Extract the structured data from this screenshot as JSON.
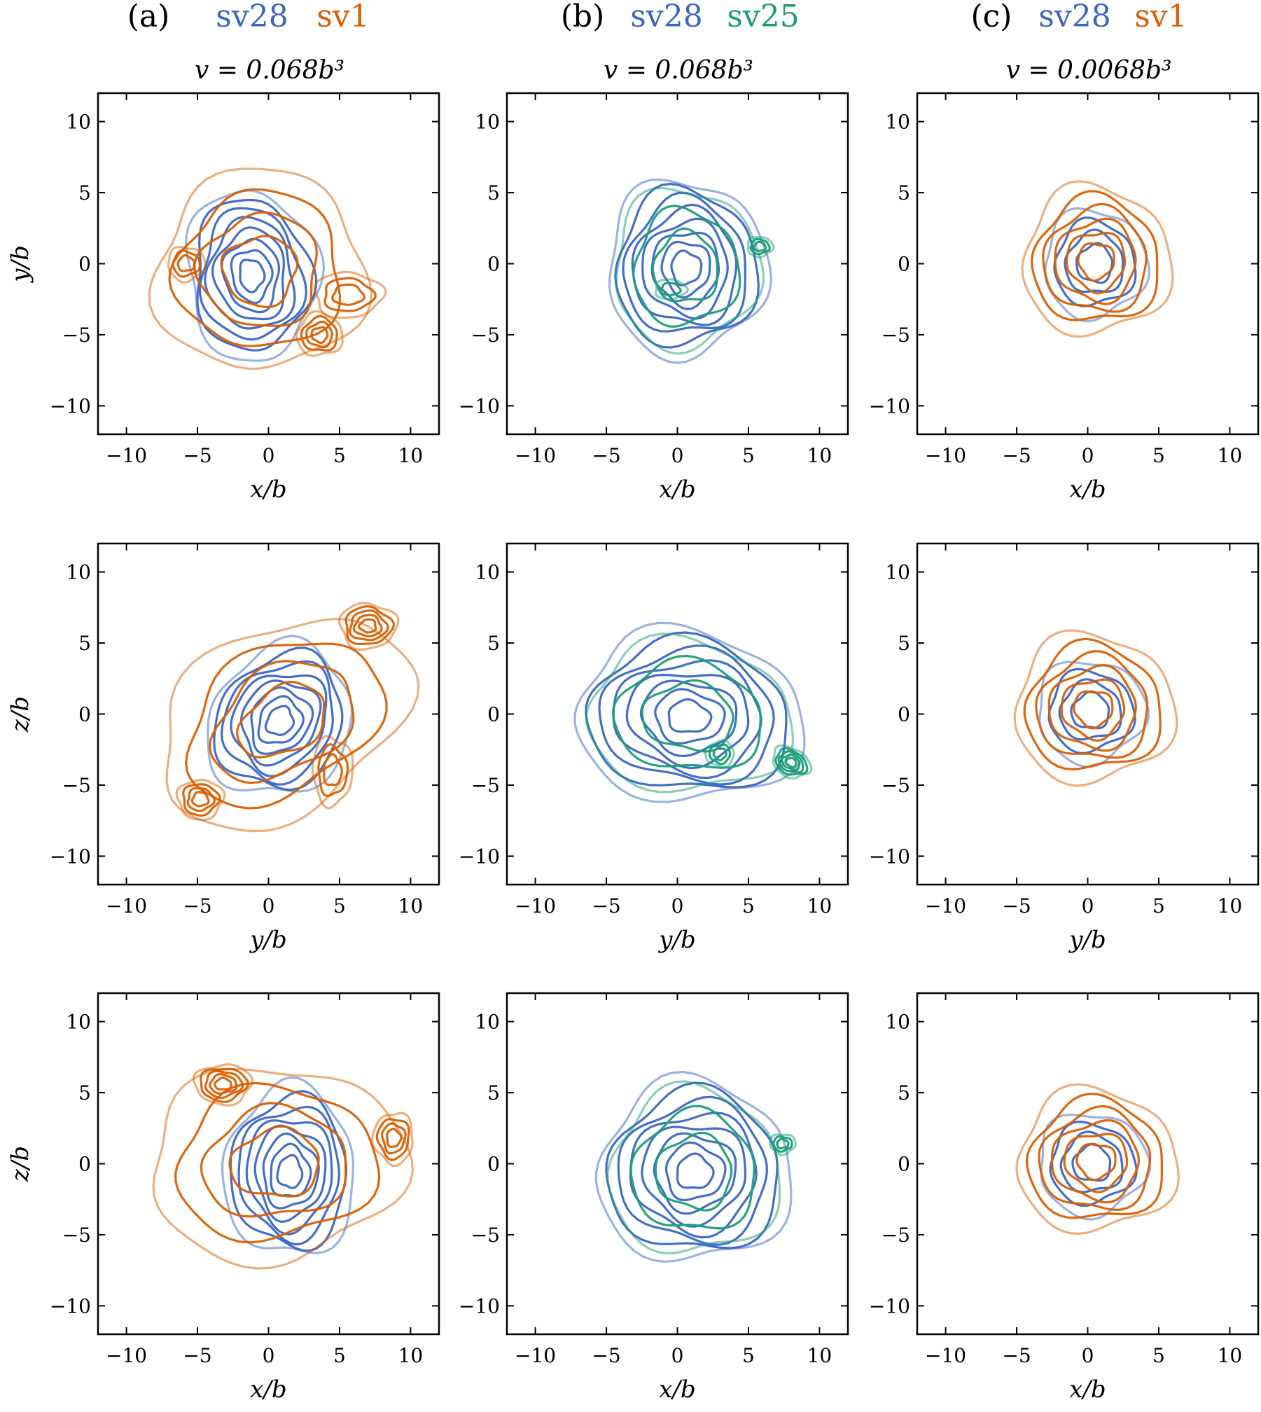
{
  "figure": {
    "columns": [
      {
        "panel_label": "(a)",
        "first": "sv28",
        "second": "sv1",
        "second_color": "#d95f02",
        "volume": "v = 0.068b³"
      },
      {
        "panel_label": "(b)",
        "first": "sv28",
        "second": "sv25",
        "second_color": "#1b9e77",
        "volume": "v = 0.068b³"
      },
      {
        "panel_label": "(c)",
        "first": "sv28",
        "second": "sv1",
        "second_color": "#d95f02",
        "volume": "v = 0.0068b³"
      }
    ],
    "colors": {
      "sv28": "#3a66c4",
      "sv1": "#d95f02",
      "sv25": "#1b9e77",
      "axes": "#000000"
    }
  },
  "chart_data": [
    {
      "type": "contour",
      "row": 0,
      "col": 0,
      "xlabel": "x/b",
      "ylabel": "y/b",
      "xlim": [
        -12,
        12
      ],
      "ylim": [
        -12,
        12
      ],
      "xticks": [
        -10,
        -5,
        0,
        5,
        10
      ],
      "yticks": [
        -10,
        -5,
        0,
        5,
        10
      ],
      "series": [
        {
          "name": "sv28",
          "color": "#3a66c4",
          "blobs": [
            {
              "c": [
                -1.2,
                -0.8
              ],
              "r": [
                4.6,
                6.0
              ],
              "rot": 0.1,
              "levels": 8
            }
          ]
        },
        {
          "name": "sv1",
          "color": "#d95f02",
          "blobs": [
            {
              "c": [
                -0.6,
                -0.5
              ],
              "r": [
                7.4,
                7.0
              ],
              "rot": 0.2,
              "levels": 4
            },
            {
              "c": [
                3.6,
                -5.0
              ],
              "r": [
                1.6,
                1.5
              ],
              "rot": 0,
              "levels": 4
            },
            {
              "c": [
                -5.8,
                0.0
              ],
              "r": [
                1.3,
                1.2
              ],
              "rot": 0,
              "levels": 3
            },
            {
              "c": [
                5.6,
                -2.2
              ],
              "r": [
                2.4,
                1.6
              ],
              "rot": 0,
              "levels": 3
            }
          ]
        }
      ]
    },
    {
      "type": "contour",
      "row": 0,
      "col": 1,
      "xlabel": "x/b",
      "ylabel": "",
      "xlim": [
        -12,
        12
      ],
      "ylim": [
        -12,
        12
      ],
      "xticks": [
        -10,
        -5,
        0,
        5,
        10
      ],
      "yticks": [
        -10,
        -5,
        0,
        5,
        10
      ],
      "series": [
        {
          "name": "sv28",
          "color": "#3a66c4",
          "blobs": [
            {
              "c": [
                0.6,
                -0.3
              ],
              "r": [
                5.6,
                6.2
              ],
              "rot": 0,
              "levels": 8
            }
          ]
        },
        {
          "name": "sv25",
          "color": "#1b9e77",
          "blobs": [
            {
              "c": [
                0.6,
                -0.3
              ],
              "r": [
                5.1,
                5.6
              ],
              "rot": 0,
              "levels": 3
            },
            {
              "c": [
                5.8,
                1.2
              ],
              "r": [
                0.9,
                0.7
              ],
              "rot": 0,
              "levels": 3
            },
            {
              "c": [
                -0.5,
                -1.8
              ],
              "r": [
                1.1,
                0.7
              ],
              "rot": 0,
              "levels": 2
            }
          ]
        }
      ]
    },
    {
      "type": "contour",
      "row": 0,
      "col": 2,
      "xlabel": "x/b",
      "ylabel": "",
      "xlim": [
        -12,
        12
      ],
      "ylim": [
        -12,
        12
      ],
      "xticks": [
        -10,
        -5,
        0,
        5,
        10
      ],
      "yticks": [
        -10,
        -5,
        0,
        5,
        10
      ],
      "series": [
        {
          "name": "sv28",
          "color": "#3a66c4",
          "blobs": [
            {
              "c": [
                0.5,
                0.0
              ],
              "r": [
                3.6,
                3.8
              ],
              "rot": 0,
              "levels": 4
            }
          ]
        },
        {
          "name": "sv1",
          "color": "#d95f02",
          "blobs": [
            {
              "c": [
                0.6,
                0.2
              ],
              "r": [
                5.2,
                5.2
              ],
              "rot": 0,
              "levels": 6
            }
          ]
        }
      ]
    },
    {
      "type": "contour",
      "row": 1,
      "col": 0,
      "xlabel": "y/b",
      "ylabel": "z/b",
      "xlim": [
        -12,
        12
      ],
      "ylim": [
        -12,
        12
      ],
      "xticks": [
        -10,
        -5,
        0,
        5,
        10
      ],
      "yticks": [
        -10,
        -5,
        0,
        5,
        10
      ],
      "series": [
        {
          "name": "sv28",
          "color": "#3a66c4",
          "blobs": [
            {
              "c": [
                0.8,
                -0.5
              ],
              "r": [
                4.8,
                5.6
              ],
              "rot": -0.6,
              "levels": 8
            }
          ]
        },
        {
          "name": "sv1",
          "color": "#d95f02",
          "blobs": [
            {
              "c": [
                1.0,
                -0.5
              ],
              "r": [
                9.5,
                6.4
              ],
              "rot": 0.55,
              "levels": 4
            },
            {
              "c": [
                7.0,
                6.2
              ],
              "r": [
                2.0,
                1.6
              ],
              "rot": 0,
              "levels": 5
            },
            {
              "c": [
                -4.8,
                -6.0
              ],
              "r": [
                1.6,
                1.4
              ],
              "rot": 0,
              "levels": 4
            },
            {
              "c": [
                4.5,
                -4.0
              ],
              "r": [
                1.4,
                2.4
              ],
              "rot": 0,
              "levels": 3
            }
          ]
        }
      ]
    },
    {
      "type": "contour",
      "row": 1,
      "col": 1,
      "xlabel": "y/b",
      "ylabel": "",
      "xlim": [
        -12,
        12
      ],
      "ylim": [
        -12,
        12
      ],
      "xticks": [
        -10,
        -5,
        0,
        5,
        10
      ],
      "yticks": [
        -10,
        -5,
        0,
        5,
        10
      ],
      "series": [
        {
          "name": "sv28",
          "color": "#3a66c4",
          "blobs": [
            {
              "c": [
                0.8,
                -0.2
              ],
              "r": [
                8.0,
                6.0
              ],
              "rot": -0.1,
              "levels": 8
            }
          ]
        },
        {
          "name": "sv25",
          "color": "#1b9e77",
          "blobs": [
            {
              "c": [
                0.8,
                -0.2
              ],
              "r": [
                7.2,
                5.3
              ],
              "rot": -0.1,
              "levels": 3
            },
            {
              "c": [
                8.0,
                -3.4
              ],
              "r": [
                1.4,
                1.0
              ],
              "rot": -0.5,
              "levels": 5
            },
            {
              "c": [
                3.0,
                -2.8
              ],
              "r": [
                1.0,
                0.9
              ],
              "rot": 0,
              "levels": 3
            }
          ]
        }
      ]
    },
    {
      "type": "contour",
      "row": 1,
      "col": 2,
      "xlabel": "y/b",
      "ylabel": "",
      "xlim": [
        -12,
        12
      ],
      "ylim": [
        -12,
        12
      ],
      "xticks": [
        -10,
        -5,
        0,
        5,
        10
      ],
      "yticks": [
        -10,
        -5,
        0,
        5,
        10
      ],
      "series": [
        {
          "name": "sv28",
          "color": "#3a66c4",
          "blobs": [
            {
              "c": [
                0.2,
                0.2
              ],
              "r": [
                3.8,
                3.6
              ],
              "rot": 0,
              "levels": 4
            }
          ]
        },
        {
          "name": "sv1",
          "color": "#d95f02",
          "blobs": [
            {
              "c": [
                0.4,
                0.4
              ],
              "r": [
                5.6,
                5.2
              ],
              "rot": 0,
              "levels": 6
            }
          ]
        }
      ]
    },
    {
      "type": "contour",
      "row": 2,
      "col": 0,
      "xlabel": "x/b",
      "ylabel": "z/b",
      "xlim": [
        -12,
        12
      ],
      "ylim": [
        -12,
        12
      ],
      "xticks": [
        -10,
        -5,
        0,
        5,
        10
      ],
      "yticks": [
        -10,
        -5,
        0,
        5,
        10
      ],
      "series": [
        {
          "name": "sv28",
          "color": "#3a66c4",
          "blobs": [
            {
              "c": [
                1.5,
                -0.6
              ],
              "r": [
                4.6,
                6.0
              ],
              "rot": 0,
              "levels": 8
            }
          ]
        },
        {
          "name": "sv1",
          "color": "#d95f02",
          "blobs": [
            {
              "c": [
                0.5,
                0.0
              ],
              "r": [
                9.0,
                6.8
              ],
              "rot": 0.1,
              "levels": 4
            },
            {
              "c": [
                -3.2,
                5.6
              ],
              "r": [
                2.0,
                1.4
              ],
              "rot": 0,
              "levels": 5
            },
            {
              "c": [
                8.8,
                1.8
              ],
              "r": [
                1.4,
                1.8
              ],
              "rot": 0,
              "levels": 4
            }
          ]
        }
      ]
    },
    {
      "type": "contour",
      "row": 2,
      "col": 1,
      "xlabel": "x/b",
      "ylabel": "",
      "xlim": [
        -12,
        12
      ],
      "ylim": [
        -12,
        12
      ],
      "xticks": [
        -10,
        -5,
        0,
        5,
        10
      ],
      "yticks": [
        -10,
        -5,
        0,
        5,
        10
      ],
      "series": [
        {
          "name": "sv28",
          "color": "#3a66c4",
          "blobs": [
            {
              "c": [
                1.2,
                -0.6
              ],
              "r": [
                6.8,
                6.4
              ],
              "rot": 0,
              "levels": 8
            }
          ]
        },
        {
          "name": "sv25",
          "color": "#1b9e77",
          "blobs": [
            {
              "c": [
                1.2,
                -0.6
              ],
              "r": [
                6.0,
                5.8
              ],
              "rot": 0,
              "levels": 3
            },
            {
              "c": [
                7.4,
                1.4
              ],
              "r": [
                0.9,
                0.7
              ],
              "rot": 0,
              "levels": 3
            }
          ]
        }
      ]
    },
    {
      "type": "contour",
      "row": 2,
      "col": 2,
      "xlabel": "x/b",
      "ylabel": "",
      "xlim": [
        -12,
        12
      ],
      "ylim": [
        -12,
        12
      ],
      "xticks": [
        -10,
        -5,
        0,
        5,
        10
      ],
      "yticks": [
        -10,
        -5,
        0,
        5,
        10
      ],
      "series": [
        {
          "name": "sv28",
          "color": "#3a66c4",
          "blobs": [
            {
              "c": [
                0.3,
                0.0
              ],
              "r": [
                3.8,
                3.6
              ],
              "rot": 0,
              "levels": 4
            }
          ]
        },
        {
          "name": "sv1",
          "color": "#d95f02",
          "blobs": [
            {
              "c": [
                0.6,
                0.2
              ],
              "r": [
                5.6,
                5.0
              ],
              "rot": 0,
              "levels": 6
            }
          ]
        }
      ]
    }
  ]
}
